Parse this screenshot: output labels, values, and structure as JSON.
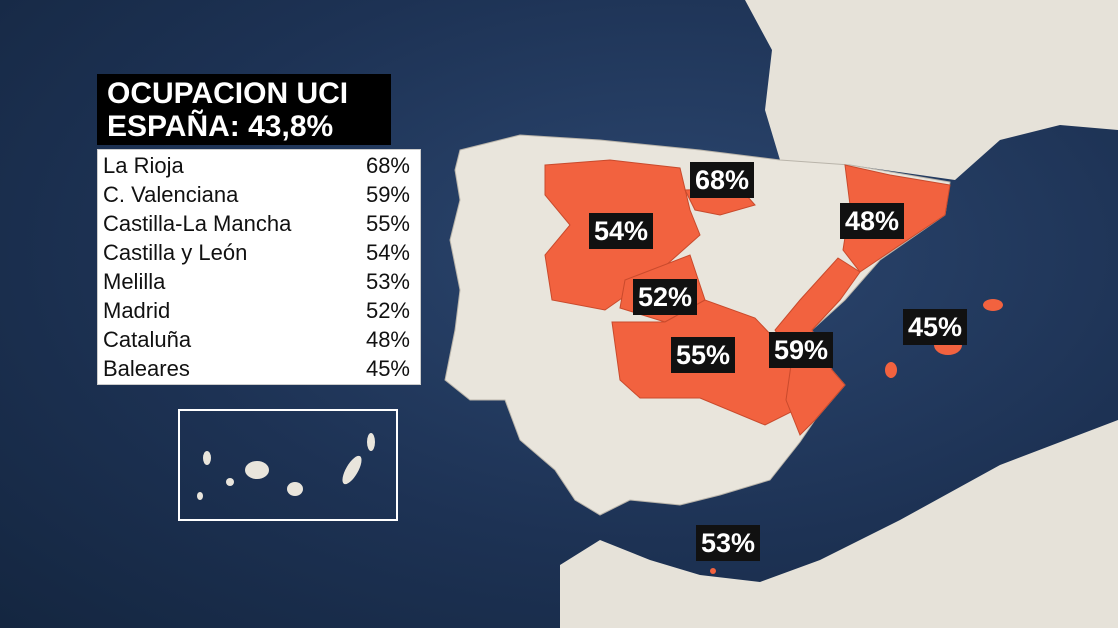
{
  "title": {
    "line1": "OCUPACION UCI",
    "line2": "ESPAÑA: 43,8%"
  },
  "table": [
    {
      "region": "La Rioja",
      "value": "68%"
    },
    {
      "region": "C. Valenciana",
      "value": "59%"
    },
    {
      "region": "Castilla-La Mancha",
      "value": "55%"
    },
    {
      "region": "Castilla y León",
      "value": "54%"
    },
    {
      "region": "Melilla",
      "value": "53%"
    },
    {
      "region": "Madrid",
      "value": "52%"
    },
    {
      "region": "Cataluña",
      "value": "48%"
    },
    {
      "region": "Baleares",
      "value": "45%"
    }
  ],
  "map_labels": {
    "la_rioja": "68%",
    "castilla_leon": "54%",
    "cataluna": "48%",
    "madrid": "52%",
    "baleares": "45%",
    "castilla_la_mancha": "55%",
    "valenciana": "59%",
    "melilla": "53%"
  },
  "colors": {
    "highlight": "#f2623f",
    "land": "#e9e5dc",
    "sea": "#1d3254",
    "label_bg": "#111111"
  }
}
